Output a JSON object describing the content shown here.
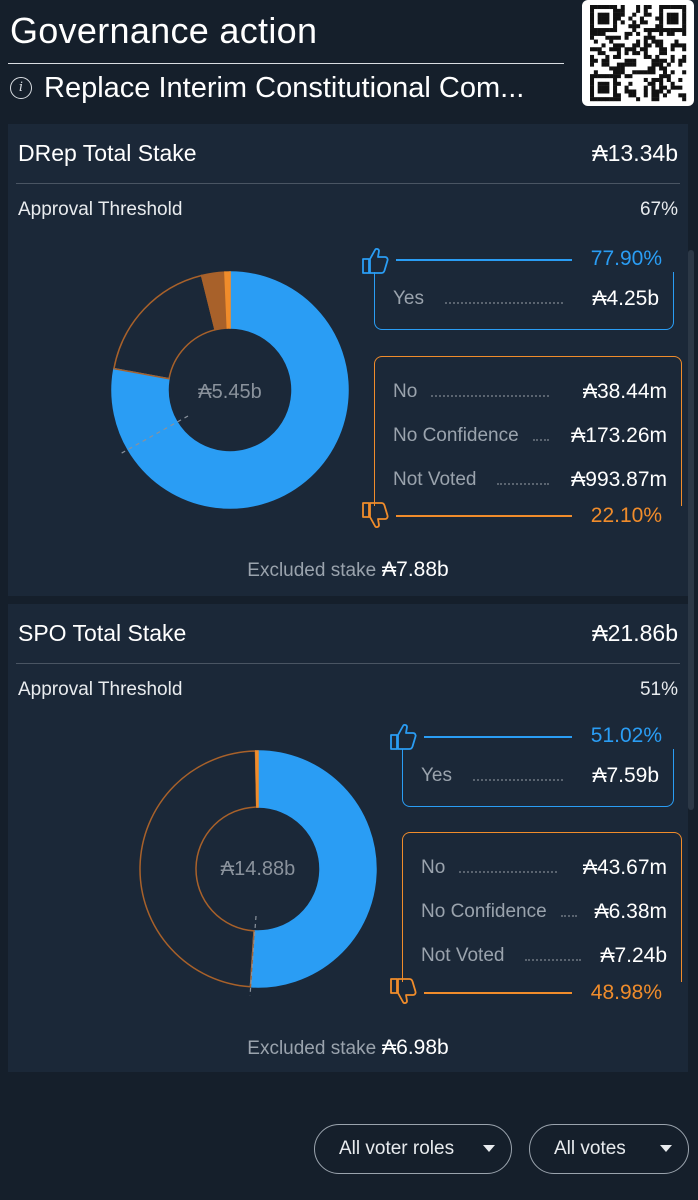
{
  "header": {
    "title": "Governance action",
    "action_name": "Replace Interim Constitutional Com...",
    "info_icon": "info-icon",
    "qr_icon": "qr-code-icon"
  },
  "colors": {
    "yes": "#2a9df4",
    "no": "#f08c2b",
    "no_dark": "#a8612a",
    "card": "#1b2838",
    "background": "#151f2b"
  },
  "drep": {
    "title": "DRep Total Stake",
    "total": "₳13.34b",
    "threshold_label": "Approval Threshold",
    "threshold_value": "67%",
    "yes_pct": "77.90%",
    "no_pct": "22.10%",
    "yes": {
      "label": "Yes",
      "value": "₳4.25b"
    },
    "rows": [
      {
        "label": "No",
        "value": "₳38.44m"
      },
      {
        "label": "No Confidence",
        "value": "₳173.26m"
      },
      {
        "label": "Not Voted",
        "value": "₳993.87m"
      }
    ],
    "center": "₳5.45b",
    "excluded_label": "Excluded stake",
    "excluded_value": "₳7.88b",
    "ring": {
      "yes_fraction": 0.779,
      "no_fraction": 0.00705,
      "no_confidence_fraction": 0.0318,
      "not_voted_fraction": 0.1823
    }
  },
  "spo": {
    "title": "SPO Total Stake",
    "total": "₳21.86b",
    "threshold_label": "Approval Threshold",
    "threshold_value": "51%",
    "yes_pct": "51.02%",
    "no_pct": "48.98%",
    "yes": {
      "label": "Yes",
      "value": "₳7.59b"
    },
    "rows": [
      {
        "label": "No",
        "value": "₳43.67m"
      },
      {
        "label": "No Confidence",
        "value": "₳6.38m"
      },
      {
        "label": "Not Voted",
        "value": "₳7.24b"
      }
    ],
    "center": "₳14.88b",
    "excluded_label": "Excluded stake",
    "excluded_value": "₳6.98b",
    "ring": {
      "yes_fraction": 0.5102,
      "no_fraction": 0.0029,
      "no_confidence_fraction": 0.0004,
      "not_voted_fraction": 0.4865
    }
  },
  "filters": {
    "roles_label": "All voter roles",
    "votes_label": "All votes"
  }
}
